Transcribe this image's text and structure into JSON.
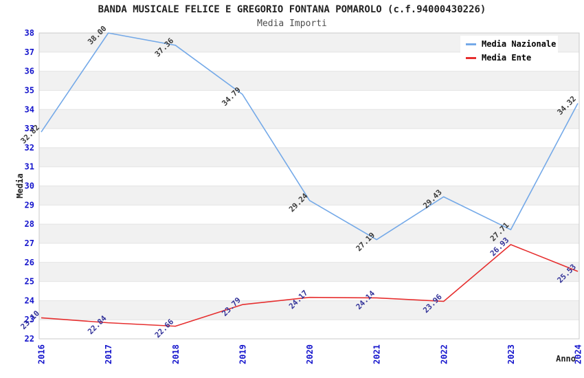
{
  "page": {
    "title": "BANDA MUSICALE FELICE E GREGORIO FONTANA POMAROLO (c.f.94000430226)",
    "subtitle": "Media Importi"
  },
  "legend": {
    "position": "top-right",
    "entries": [
      {
        "label": "Media Nazionale",
        "color": "#74A9E8"
      },
      {
        "label": "Media Ente",
        "color": "#E62E2E"
      }
    ]
  },
  "chart_data": {
    "type": "line",
    "title": "BANDA MUSICALE FELICE E GREGORIO FONTANA POMAROLO (c.f.94000430226)",
    "subtitle": "Media Importi",
    "x": [
      2016,
      2017,
      2018,
      2019,
      2020,
      2021,
      2022,
      2023,
      2024
    ],
    "series": [
      {
        "name": "Media Nazionale",
        "color": "#74A9E8",
        "label_color": "#3A3A3A",
        "values": [
          32.82,
          38.0,
          37.36,
          34.79,
          29.24,
          27.19,
          29.43,
          27.71,
          34.32
        ]
      },
      {
        "name": "Media Ente",
        "color": "#E62E2E",
        "label_color": "#333399",
        "values": [
          23.1,
          22.84,
          22.66,
          23.79,
          24.17,
          24.14,
          23.96,
          26.93,
          25.53
        ]
      }
    ],
    "xlabel": "Anno",
    "ylabel": "Media",
    "ylim": [
      22,
      38
    ],
    "ytick_step": 1,
    "grid": "horizontal-alternating-bands",
    "band_fill": "#F1F1F1",
    "grid_color": "#E4E4E4",
    "axis_color": "#C9C9C9",
    "tick_label_color": "#1414CC",
    "legend_position": "top-right"
  }
}
